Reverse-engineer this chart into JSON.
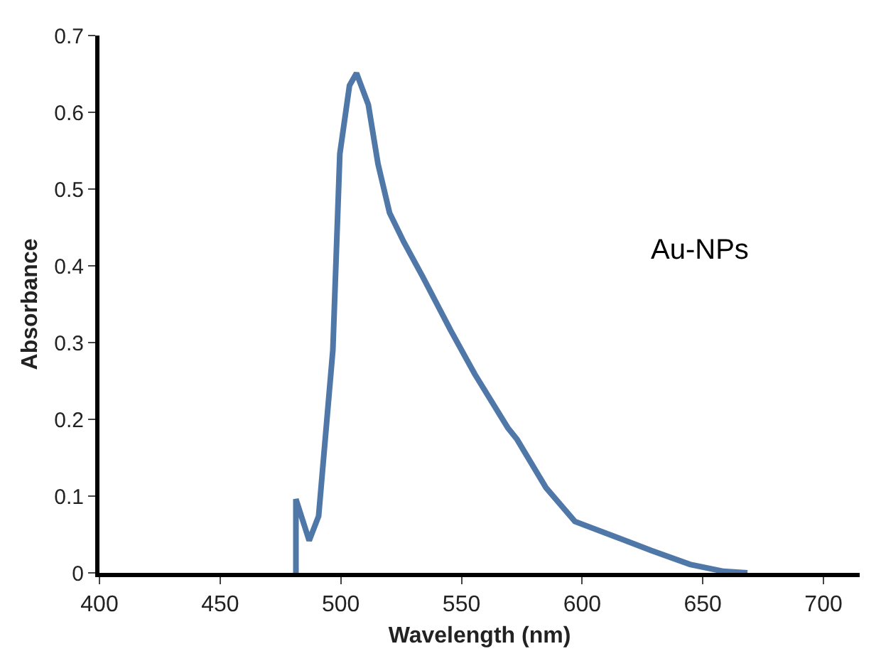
{
  "chart_data": {
    "type": "line",
    "xlabel": "Wavelength (nm)",
    "ylabel": "Absorbance",
    "annotations": [
      "Au-NPs"
    ],
    "xlim": [
      400,
      715
    ],
    "xticks": [
      400,
      450,
      500,
      550,
      600,
      650,
      700
    ],
    "ylim": [
      0,
      0.7
    ],
    "yticks": [
      0,
      0.1,
      0.2,
      0.3,
      0.4,
      0.5,
      0.6,
      0.7
    ],
    "marker": "none",
    "line_style": "solid",
    "series": [
      {
        "color": "#4f78a8",
        "x": [
          481.4,
          481.4,
          486.9,
          490.8,
          496.7,
          499.6,
          503.6,
          506.5,
          511.4,
          515.4,
          520.2,
          526.1,
          533.9,
          545.5,
          555.5,
          569.2,
          573,
          585,
          597,
          613,
          628.8,
          644.7,
          658.5,
          668.5
        ],
        "values": [
          0,
          0.096,
          0.042,
          0.074,
          0.29,
          0.546,
          0.635,
          0.651,
          0.61,
          0.533,
          0.469,
          0.431,
          0.386,
          0.316,
          0.259,
          0.189,
          0.174,
          0.111,
          0.067,
          0.048,
          0.029,
          0.011,
          0.002,
          0
        ]
      }
    ]
  }
}
